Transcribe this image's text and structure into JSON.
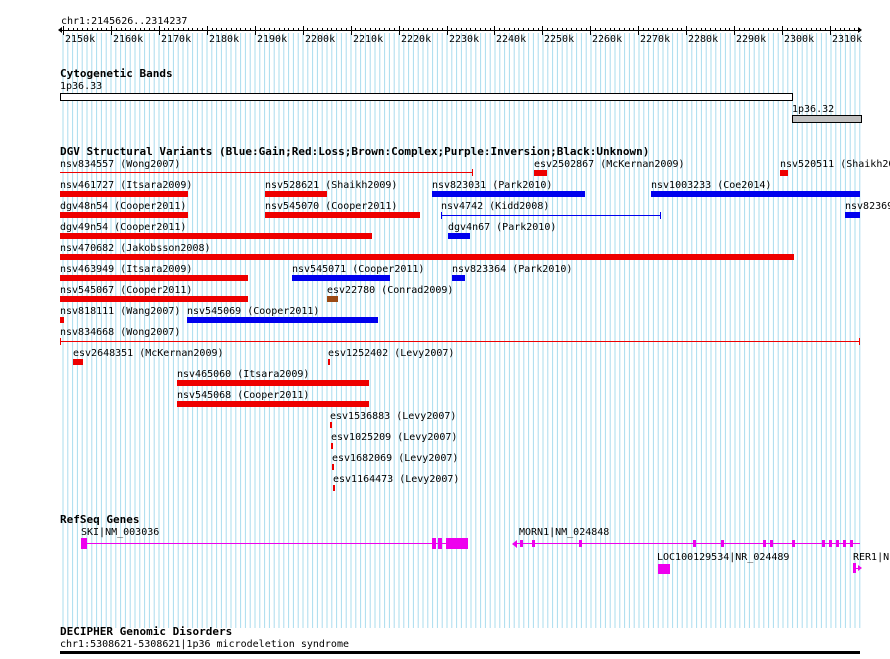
{
  "ruler": {
    "region": "chr1:2145626..2314237",
    "ticks": [
      "2150k",
      "2160k",
      "2170k",
      "2180k",
      "2190k",
      "2200k",
      "2210k",
      "2220k",
      "2230k",
      "2240k",
      "2250k",
      "2260k",
      "2270k",
      "2280k",
      "2290k",
      "2300k",
      "2310k"
    ]
  },
  "tracks": {
    "cytobands": {
      "title": "Cytogenetic Bands",
      "band1": "1p36.33",
      "band2": "1p36.32"
    },
    "dgv": {
      "title": "DGV Structural Variants (Blue:Gain;Red:Loss;Brown:Complex;Purple:Inversion;Black:Unknown)",
      "features": [
        "nsv834557 (Wong2007)",
        "esv2502867 (McKernan2009)",
        "nsv520511 (Shaikh20",
        "nsv461727 (Itsara2009)",
        "nsv528621 (Shaikh2009)",
        "nsv823031 (Park2010)",
        "nsv1003233 (Coe2014)",
        "dgv48n54 (Cooper2011)",
        "nsv545070 (Cooper2011)",
        "nsv4742 (Kidd2008)",
        "nsv82369",
        "dgv49n54 (Cooper2011)",
        "dgv4n67 (Park2010)",
        "nsv470682 (Jakobsson2008)",
        "nsv463949 (Itsara2009)",
        "nsv545071 (Cooper2011)",
        "nsv823364 (Park2010)",
        "nsv545067 (Cooper2011)",
        "esv22780 (Conrad2009)",
        "nsv818111 (Wang2007)",
        "nsv545069 (Cooper2011)",
        "nsv834668 (Wong2007)",
        "esv2648351 (McKernan2009)",
        "esv1252402 (Levy2007)",
        "nsv465060 (Itsara2009)",
        "nsv545068 (Cooper2011)",
        "esv1536883 (Levy2007)",
        "esv1025209 (Levy2007)",
        "esv1682069 (Levy2007)",
        "esv1164473 (Levy2007)"
      ]
    },
    "refseq": {
      "title": "RefSeq Genes",
      "genes": [
        "SKI|NM_003036",
        "MORN1|NM_024848",
        "LOC100129534|NR_024489",
        "RER1|N"
      ]
    },
    "decipher": {
      "title": "DECIPHER Genomic Disorders",
      "feature": "chr1:5308621-5308621|1p36 microdeletion syndrome"
    }
  },
  "colors": {
    "gain": "#0000ee",
    "loss": "#ee0000",
    "complex": "#9b4a14",
    "gene": "#ee00ee",
    "grid": "#aadcee"
  }
}
